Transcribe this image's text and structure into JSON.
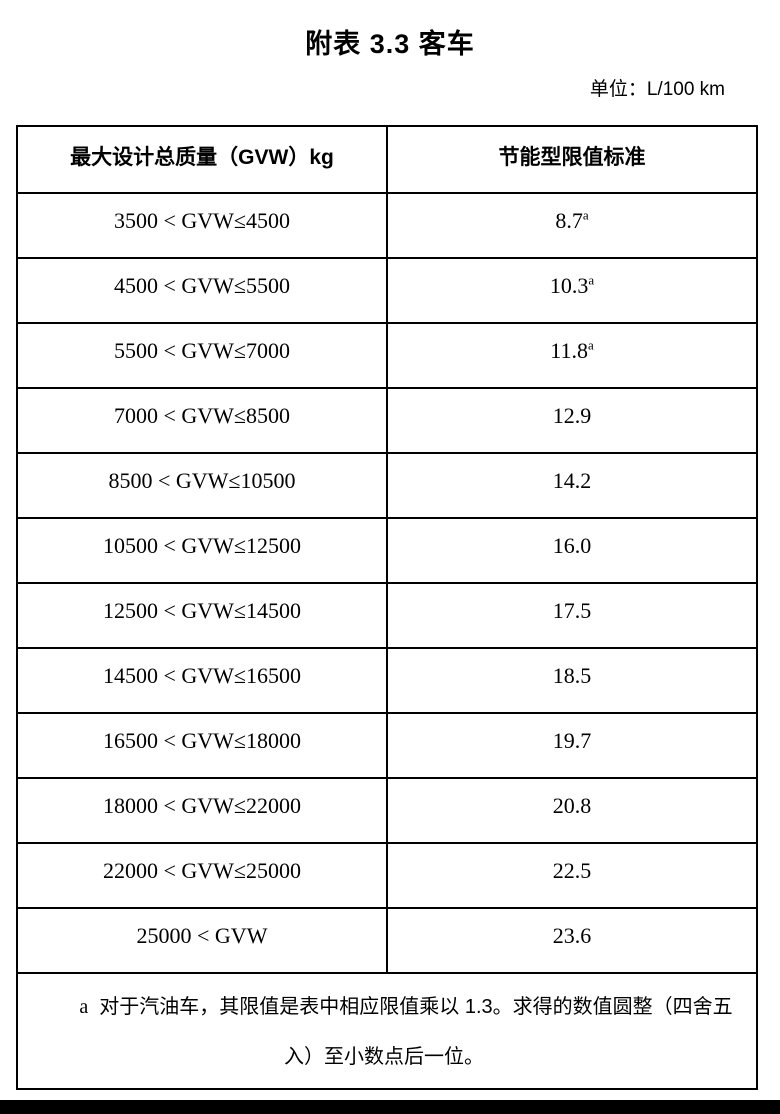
{
  "page": {
    "title": "附表 3.3 客车",
    "unit_label": "单位：L/100 km"
  },
  "table": {
    "headers": [
      "最大设计总质量（GVW）kg",
      "节能型限值标准"
    ],
    "rows": [
      {
        "gvw_range": "3500 < GVW≤4500",
        "limit": "8.7",
        "sup": "a"
      },
      {
        "gvw_range": "4500 < GVW≤5500",
        "limit": "10.3",
        "sup": "a"
      },
      {
        "gvw_range": "5500 < GVW≤7000",
        "limit": "11.8",
        "sup": "a"
      },
      {
        "gvw_range": "7000 < GVW≤8500",
        "limit": "12.9",
        "sup": ""
      },
      {
        "gvw_range": "8500 < GVW≤10500",
        "limit": "14.2",
        "sup": ""
      },
      {
        "gvw_range": "10500 < GVW≤12500",
        "limit": "16.0",
        "sup": ""
      },
      {
        "gvw_range": "12500 < GVW≤14500",
        "limit": "17.5",
        "sup": ""
      },
      {
        "gvw_range": "14500 < GVW≤16500",
        "limit": "18.5",
        "sup": ""
      },
      {
        "gvw_range": "16500 < GVW≤18000",
        "limit": "19.7",
        "sup": ""
      },
      {
        "gvw_range": "18000 < GVW≤22000",
        "limit": "20.8",
        "sup": ""
      },
      {
        "gvw_range": "22000 < GVW≤25000",
        "limit": "22.5",
        "sup": ""
      },
      {
        "gvw_range": "25000 < GVW",
        "limit": "23.6",
        "sup": ""
      }
    ],
    "footnote": {
      "marker": "a",
      "text": "对于汽油车，其限值是表中相应限值乘以 1.3。求得的数值圆整（四舍五入）至小数点后一位。"
    }
  }
}
